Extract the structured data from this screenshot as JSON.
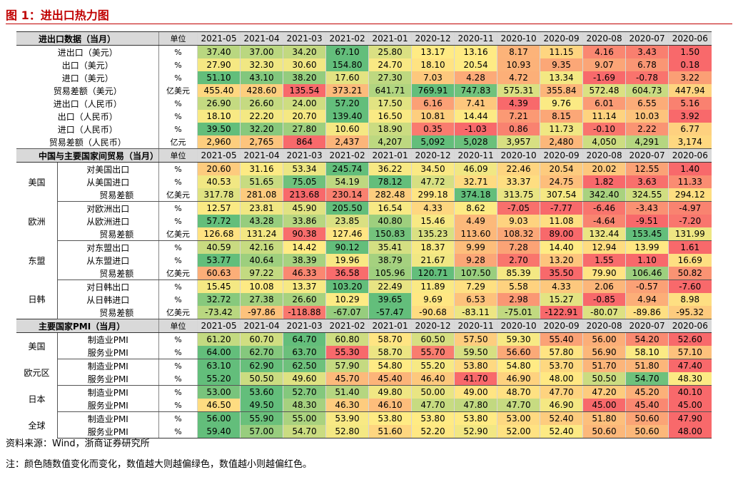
{
  "title": "图 1：进出口热力图",
  "dates": [
    "2021-05",
    "2021-04",
    "2021-03",
    "2021-02",
    "2021-01",
    "2020-12",
    "2020-11",
    "2020-10",
    "2020-09",
    "2020-08",
    "2020-07",
    "2020-06"
  ],
  "sections": [
    {
      "header": "进出口数据（当月）",
      "unit_header": "单位",
      "rows": [
        {
          "label": "进出口（美元）",
          "unit": "%",
          "values": [
            "37.40",
            "37.00",
            "34.20",
            "67.10",
            "25.80",
            "13.17",
            "13.16",
            "8.17",
            "11.15",
            "4.16",
            "3.43",
            "1.50"
          ]
        },
        {
          "label": "出口（美元）",
          "unit": "%",
          "values": [
            "27.90",
            "32.30",
            "30.60",
            "154.80",
            "24.70",
            "18.10",
            "20.54",
            "10.93",
            "9.35",
            "9.07",
            "6.78",
            "0.18"
          ]
        },
        {
          "label": "进口（美元）",
          "unit": "%",
          "values": [
            "51.10",
            "43.10",
            "38.20",
            "17.60",
            "27.30",
            "7.03",
            "4.28",
            "4.72",
            "13.34",
            "-1.69",
            "-0.78",
            "3.22"
          ]
        },
        {
          "label": "贸易差额（美元）",
          "unit": "亿美元",
          "values": [
            "455.40",
            "428.60",
            "135.54",
            "373.21",
            "641.71",
            "769.91",
            "747.83",
            "575.31",
            "355.84",
            "572.48",
            "604.73",
            "447.94"
          ]
        },
        {
          "label": "进出口（人民币）",
          "unit": "%",
          "values": [
            "26.90",
            "26.60",
            "24.00",
            "57.20",
            "17.50",
            "6.16",
            "7.41",
            "4.39",
            "9.76",
            "6.01",
            "6.55",
            "5.16"
          ]
        },
        {
          "label": "出口（人民币）",
          "unit": "%",
          "values": [
            "18.10",
            "22.20",
            "20.70",
            "139.40",
            "16.50",
            "10.81",
            "14.44",
            "7.21",
            "8.15",
            "11.14",
            "10.03",
            "3.92"
          ]
        },
        {
          "label": "进口（人民币）",
          "unit": "%",
          "values": [
            "39.50",
            "32.20",
            "27.80",
            "10.60",
            "18.90",
            "0.35",
            "-1.03",
            "0.86",
            "11.73",
            "-0.10",
            "2.22",
            "6.77"
          ]
        },
        {
          "label": "贸易差额（人民币）",
          "unit": "亿元",
          "values": [
            "2,960",
            "2,765",
            "864",
            "2,437",
            "4,207",
            "5,092",
            "5,028",
            "3,957",
            "2,480",
            "4,050",
            "4,291",
            "3,174"
          ]
        }
      ]
    },
    {
      "header": "中国与主要国家间贸易（当月）",
      "unit_header": "单位",
      "groups": [
        {
          "name": "美国",
          "rows": [
            {
              "label": "对美国出口",
              "unit": "%",
              "values": [
                "20.60",
                "31.16",
                "53.34",
                "245.74",
                "36.22",
                "34.50",
                "46.09",
                "22.46",
                "20.54",
                "20.02",
                "12.55",
                "1.40"
              ]
            },
            {
              "label": "从美国进口",
              "unit": "%",
              "values": [
                "40.53",
                "51.65",
                "75.05",
                "54.19",
                "78.12",
                "47.72",
                "32.71",
                "33.37",
                "24.75",
                "1.82",
                "3.63",
                "11.33"
              ]
            },
            {
              "label": "贸易差额",
              "unit": "亿美元",
              "values": [
                "317.78",
                "281.08",
                "213.68",
                "230.14",
                "282.48",
                "299.18",
                "374.18",
                "313.75",
                "307.54",
                "342.40",
                "324.55",
                "294.12"
              ]
            }
          ]
        },
        {
          "name": "欧洲",
          "rows": [
            {
              "label": "对欧洲出口",
              "unit": "%",
              "values": [
                "12.57",
                "23.81",
                "45.90",
                "205.50",
                "16.54",
                "4.33",
                "8.62",
                "-7.05",
                "-7.77",
                "-6.46",
                "-3.43",
                "-4.97"
              ]
            },
            {
              "label": "从欧洲进口",
              "unit": "%",
              "values": [
                "57.72",
                "43.28",
                "33.86",
                "23.85",
                "40.80",
                "15.46",
                "4.49",
                "9.03",
                "11.08",
                "-4.64",
                "-9.51",
                "-7.20"
              ]
            },
            {
              "label": "贸易差额",
              "unit": "亿美元",
              "values": [
                "126.68",
                "131.24",
                "90.38",
                "127.46",
                "150.83",
                "135.23",
                "113.60",
                "108.32",
                "89.00",
                "132.44",
                "153.45",
                "131.99"
              ]
            }
          ]
        },
        {
          "name": "东盟",
          "rows": [
            {
              "label": "对东盟出口",
              "unit": "%",
              "values": [
                "40.59",
                "42.16",
                "14.42",
                "90.12",
                "35.41",
                "18.37",
                "9.99",
                "7.28",
                "14.40",
                "12.94",
                "13.99",
                "1.61"
              ]
            },
            {
              "label": "从东盟进口",
              "unit": "%",
              "values": [
                "53.77",
                "40.64",
                "38.39",
                "19.96",
                "38.79",
                "21.67",
                "9.28",
                "2.70",
                "13.20",
                "1.55",
                "1.10",
                "16.69"
              ]
            },
            {
              "label": "贸易差额",
              "unit": "亿美元",
              "values": [
                "60.63",
                "97.22",
                "46.33",
                "36.58",
                "105.96",
                "120.71",
                "107.50",
                "85.39",
                "35.50",
                "79.90",
                "106.46",
                "50.82"
              ]
            }
          ]
        },
        {
          "name": "日韩",
          "rows": [
            {
              "label": "对日韩出口",
              "unit": "%",
              "values": [
                "15.45",
                "10.08",
                "13.37",
                "103.20",
                "22.49",
                "11.89",
                "7.29",
                "5.58",
                "4.33",
                "2.06",
                "-0.57",
                "-7.60"
              ]
            },
            {
              "label": "从日韩进口",
              "unit": "%",
              "values": [
                "32.72",
                "27.38",
                "26.60",
                "10.29",
                "39.65",
                "9.69",
                "6.53",
                "2.98",
                "15.27",
                "-0.85",
                "4.94",
                "8.98"
              ]
            },
            {
              "label": "贸易差额",
              "unit": "亿美元",
              "values": [
                "-73.42",
                "-97.86",
                "-118.88",
                "-67.07",
                "-57.47",
                "-90.68",
                "-83.11",
                "-75.01",
                "-122.91",
                "-80.07",
                "-89.86",
                "-95.32"
              ]
            }
          ]
        }
      ]
    },
    {
      "header": "主要国家PMI（当月）",
      "unit_header": "单位",
      "groups": [
        {
          "name": "美国",
          "rows": [
            {
              "label": "制造业PMI",
              "unit": "%",
              "values": [
                "61.20",
                "60.70",
                "64.70",
                "60.80",
                "58.70",
                "60.50",
                "57.50",
                "59.30",
                "55.40",
                "56.00",
                "54.20",
                "52.60"
              ]
            },
            {
              "label": "服务业PMI",
              "unit": "%",
              "values": [
                "64.00",
                "62.70",
                "63.70",
                "55.30",
                "58.70",
                "55.70",
                "59.50",
                "56.60",
                "57.80",
                "56.90",
                "58.10",
                "57.10"
              ]
            }
          ]
        },
        {
          "name": "欧元区",
          "rows": [
            {
              "label": "制造业PMI",
              "unit": "%",
              "values": [
                "63.10",
                "62.90",
                "62.50",
                "57.90",
                "54.80",
                "55.20",
                "53.80",
                "54.80",
                "53.70",
                "51.70",
                "51.80",
                "47.40"
              ]
            },
            {
              "label": "服务业PMI",
              "unit": "%",
              "values": [
                "55.20",
                "50.50",
                "49.60",
                "45.70",
                "45.40",
                "46.40",
                "41.70",
                "46.90",
                "48.00",
                "50.50",
                "54.70",
                "48.30"
              ]
            }
          ]
        },
        {
          "name": "日本",
          "rows": [
            {
              "label": "制造业PMI",
              "unit": "%",
              "values": [
                "53.00",
                "53.60",
                "52.70",
                "51.40",
                "49.80",
                "50.00",
                "49.00",
                "48.70",
                "47.70",
                "47.20",
                "45.20",
                "40.10"
              ]
            },
            {
              "label": "服务业PMI",
              "unit": "%",
              "values": [
                "46.50",
                "49.50",
                "48.30",
                "46.30",
                "46.10",
                "47.70",
                "47.80",
                "47.70",
                "46.90",
                "45.00",
                "45.40",
                "45.00"
              ]
            }
          ]
        },
        {
          "name": "全球",
          "rows": [
            {
              "label": "制造业PMI",
              "unit": "%",
              "values": [
                "56.00",
                "55.90",
                "55.00",
                "53.90",
                "53.80",
                "53.80",
                "53.80",
                "53.00",
                "52.40",
                "51.80",
                "50.60",
                "47.90"
              ]
            },
            {
              "label": "服务业PMI",
              "unit": "%",
              "values": [
                "59.40",
                "57.00",
                "54.70",
                "52.80",
                "51.60",
                "52.20",
                "52.90",
                "52.00",
                "52.40",
                "50.60",
                "50.60",
                "48.00"
              ]
            }
          ]
        }
      ]
    }
  ],
  "colors": {
    "low": "#f8696b",
    "mid": "#ffeb84",
    "high": "#63be7b",
    "header_bg": "#d9d9d9"
  },
  "source": "资料来源：Wind，浙商证券研究所",
  "note": "注：颜色随数值变化而变化，数值越大则越偏绿色，数值越小则越偏红色。"
}
